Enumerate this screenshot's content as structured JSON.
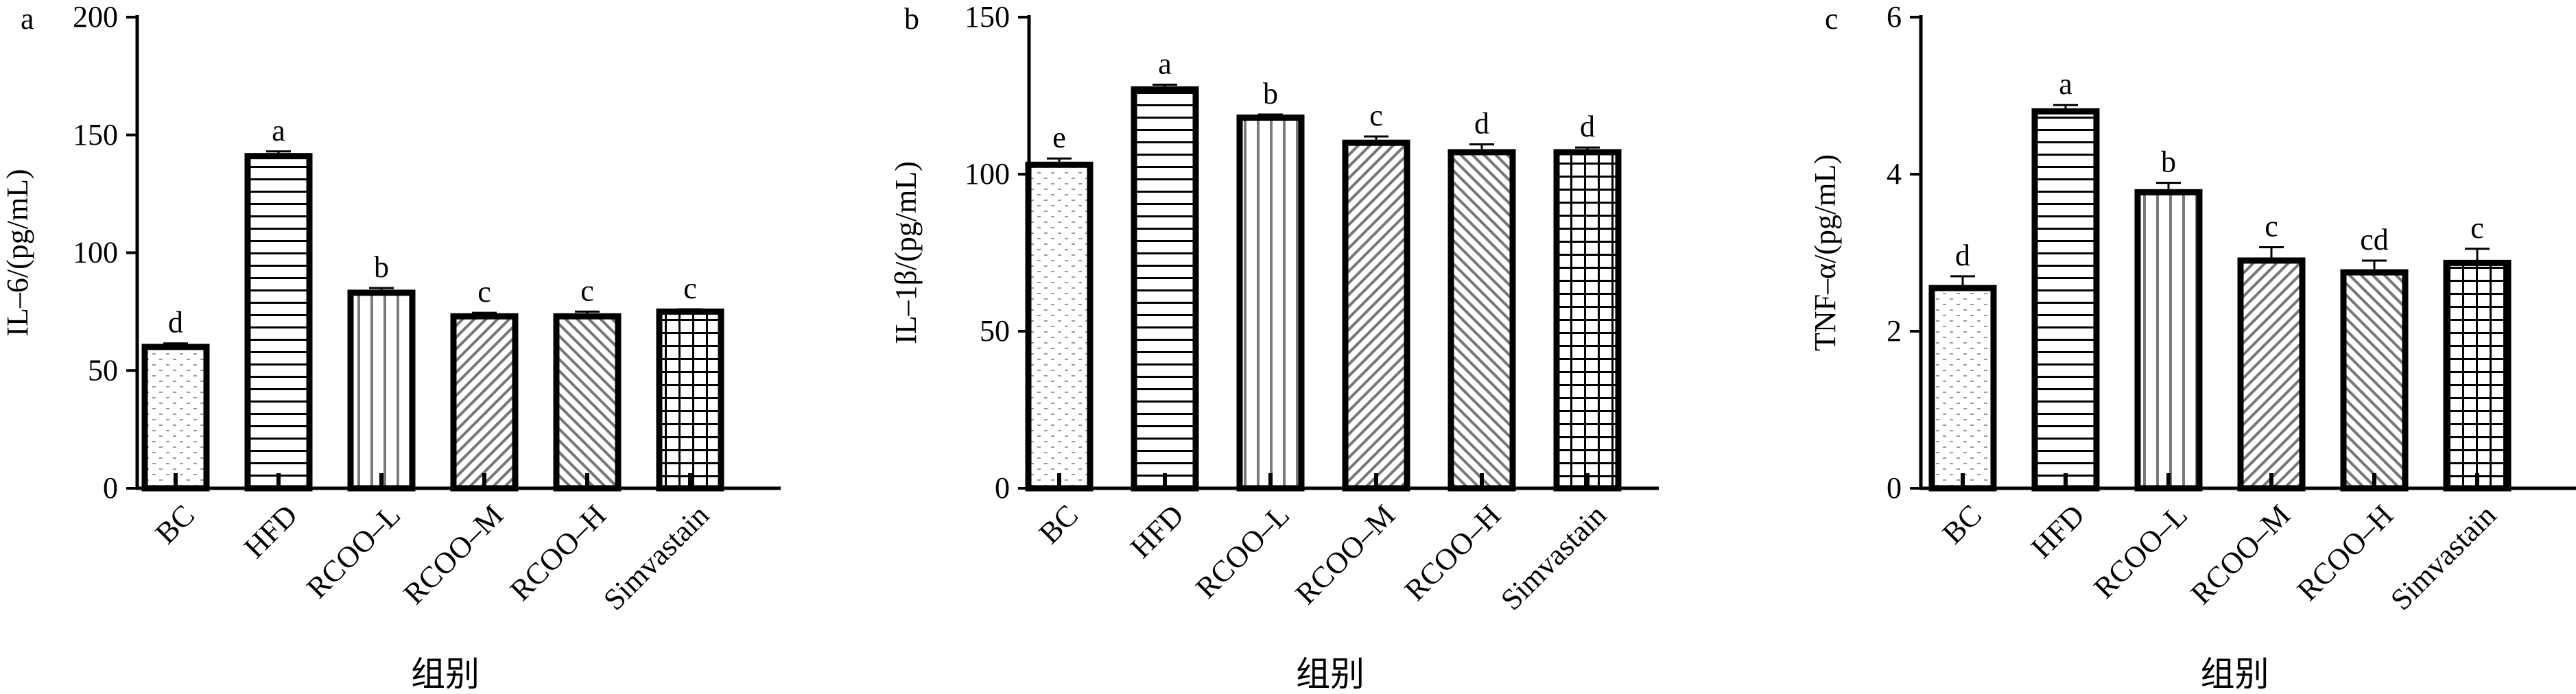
{
  "chart_data": [
    {
      "type": "bar",
      "panel_label": "a",
      "categories": [
        "BC",
        "HFD",
        "RCOO–L",
        "RCOO–M",
        "RCOO–H",
        "Simvastain"
      ],
      "values": [
        60,
        141,
        83,
        73,
        73,
        75
      ],
      "errors": [
        1.5,
        2,
        2,
        1.5,
        2,
        1
      ],
      "significance": [
        "d",
        "a",
        "b",
        "c",
        "c",
        "c"
      ],
      "ylabel": "IL–6/(pg/mL)",
      "xlabel": "组别",
      "ylim": [
        0,
        200
      ],
      "yticks": [
        0,
        50,
        100,
        150,
        200
      ],
      "ytick_labels": [
        "0",
        "50",
        "100",
        "150",
        "200"
      ]
    },
    {
      "type": "bar",
      "panel_label": "b",
      "categories": [
        "BC",
        "HFD",
        "RCOO–L",
        "RCOO–M",
        "RCOO–H",
        "Simvastain"
      ],
      "values": [
        103,
        127,
        118,
        110,
        107,
        107
      ],
      "errors": [
        2,
        1.5,
        1,
        2,
        2.5,
        1.5
      ],
      "significance": [
        "e",
        "a",
        "b",
        "c",
        "d",
        "d"
      ],
      "ylabel": "IL–1β/(pg/mL)",
      "xlabel": "组别",
      "ylim": [
        0,
        150
      ],
      "yticks": [
        0,
        50,
        100,
        150
      ],
      "ytick_labels": [
        "0",
        "50",
        "100",
        "150"
      ]
    },
    {
      "type": "bar",
      "panel_label": "c",
      "categories": [
        "BC",
        "HFD",
        "RCOO–L",
        "RCOO–M",
        "RCOO–H",
        "Simvastain"
      ],
      "values": [
        2.55,
        4.8,
        3.77,
        2.9,
        2.75,
        2.87
      ],
      "errors": [
        0.15,
        0.08,
        0.12,
        0.17,
        0.15,
        0.18
      ],
      "significance": [
        "d",
        "a",
        "b",
        "c",
        "cd",
        "c"
      ],
      "ylabel": "TNF–α/(pg/mL)",
      "xlabel": "组别",
      "ylim": [
        0,
        6
      ],
      "yticks": [
        0,
        2,
        4,
        6
      ],
      "ytick_labels": [
        "0",
        "2",
        "4",
        "6"
      ]
    }
  ]
}
